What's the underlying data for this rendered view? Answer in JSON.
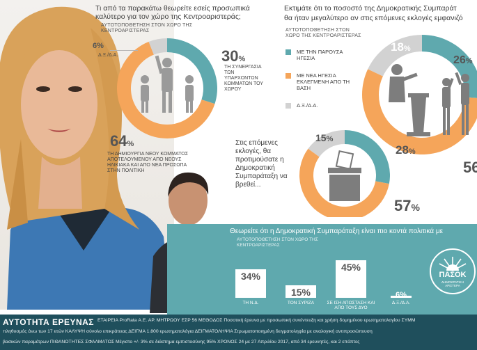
{
  "colors": {
    "teal": "#5fa9ae",
    "orange": "#f5a55a",
    "gray": "#d2d2d2",
    "dark_teal": "#1f4f5c"
  },
  "q1": {
    "question": "Τι από τα παρακάτω θεωρείτε εσείς προσωπικά καλύτερο για τον χώρο της Κεντροαριστεράς;",
    "subtitle": "ΑΥΤΟΤΟΠΟΘΕΤΗΣΗ ΣΤΟΝ ΧΩΡΟ ΤΗΣ ΚΕΝΤΡΟΑΡΙΣΤΕΡΑΣ",
    "slice_orange": {
      "pct": "64",
      "pct_sign": "%",
      "caption": "ΤΗ ΔΗΜΙΟΥΡΓΙΑ ΝΕΟΥ ΚΟΜΜΑΤΟΣ ΑΠΟΤΕΛΟΥΜΕΝΟΥ ΑΠΟ ΝΕΟΥΣ ΗΛΙΚΙΑΚΑ ΚΑΙ ΑΠΟ ΝΕΑ ΠΡΟΣΩΠΑ ΣΤΗΝ ΠΟΛΙΤΙΚΗ"
    },
    "slice_teal": {
      "pct": "30",
      "pct_sign": "%",
      "caption": "ΤΗ ΣΥΝΕΡΓΑΣΙΑ ΤΩΝ ΥΠΑΡΧΟΝΤΩΝ ΚΟΜΜΑΤΩΝ ΤΟΥ ΧΩΡΟΥ"
    },
    "slice_gray": {
      "pct": "6",
      "pct_sign": "%",
      "caption": "Δ.Ξ./Δ.Α."
    }
  },
  "q2": {
    "question_line1": "Εκτιμάτε ότι το ποσοστό της Δημοκρατικής Συμπαράτ",
    "question_line2": "θα ήταν μεγαλύτερο αν στις επόμενες εκλογές εμφανιζό",
    "subtitle": "ΑΥΤΟΤΟΠΟΘΕΤΗΣΗ ΣΤΟΝ ΧΩΡΟ ΤΗΣ ΚΕΝΤΡΟΑΡΙΣΤΕΡΑΣ",
    "legend": [
      {
        "label": "ΜΕ ΤΗΝ ΠΑΡΟΥΣΑ ΗΓΕΣΙΑ"
      },
      {
        "label": "ΜΕ ΝΕΑ ΗΓΕΣΙΑ ΕΚΛΕΓΜΕΝΗ ΑΠΟ ΤΗ ΒΑΣΗ"
      },
      {
        "label": "Δ.Ξ./Δ.Α."
      }
    ],
    "pct_teal": "26",
    "pct_teal_sign": "%",
    "pct_gray": "18",
    "pct_gray_sign": "%",
    "pct_orange": "56"
  },
  "q3": {
    "question": "Στις επόμενες εκλογές, θα προτιμούσατε η Δημοκρατική Συμπαράταξη να βρεθεί...",
    "pct_teal": "28",
    "pct_teal_sign": "%",
    "pct_gray": "15",
    "pct_gray_sign": "%",
    "pct_orange": "57",
    "pct_orange_sign": "%"
  },
  "q4": {
    "question": "Θεωρείτε ότι η Δημοκρατική Συμπαράταξη είναι πιο κοντά πολιτικά με",
    "subtitle": "ΑΥΤΟΤΟΠΟΘΕΤΗΣΗ ΣΤΟΝ ΧΩΡΟ ΤΗΣ ΚΕΝΤΡΟΑΡΙΣΤΕΡΑΣ",
    "logo_text": "ΠΑΣΟΚ",
    "logo_sub": "ΔΗΜΟΚΡΑΤΙΚΗ ΑΡΙΣΤΕΡΑ"
  },
  "chart_data": [
    {
      "type": "pie",
      "title": "Τι από τα παρακάτω θεωρείτε εσείς προσωπικά καλύτερο για τον χώρο της Κεντροαριστεράς;",
      "categories": [
        "ΤΗ ΔΗΜΙΟΥΡΓΙΑ ΝΕΟΥ ΚΟΜΜΑΤΟΣ",
        "ΤΗ ΣΥΝΕΡΓΑΣΙΑ ΤΩΝ ΥΠΑΡΧΟΝΤΩΝ ΚΟΜΜΑΤΩΝ ΤΟΥ ΧΩΡΟΥ",
        "Δ.Ξ./Δ.Α."
      ],
      "values": [
        64,
        30,
        6
      ]
    },
    {
      "type": "pie",
      "title": "Εκτιμάτε ότι το ποσοστό της Δημοκρατικής Συμπαράταξης θα ήταν μεγαλύτερο αν στις επόμενες εκλογές εμφανιζό",
      "categories": [
        "ΜΕ ΤΗΝ ΠΑΡΟΥΣΑ ΗΓΕΣΙΑ",
        "ΜΕ ΝΕΑ ΗΓΕΣΙΑ ΕΚΛΕΓΜΕΝΗ ΑΠΟ ΤΗ ΒΑΣΗ",
        "Δ.Ξ./Δ.Α."
      ],
      "values": [
        26,
        56,
        18
      ]
    },
    {
      "type": "pie",
      "title": "Στις επόμενες εκλογές, θα προτιμούσατε η Δημοκρατική Συμπαράταξη να βρεθεί...",
      "values": [
        28,
        57,
        15
      ]
    },
    {
      "type": "bar",
      "title": "Θεωρείτε ότι η Δημοκρατική Συμπαράταξη είναι πιο κοντά πολιτικά με",
      "categories": [
        "ΤΗ Ν.Δ.",
        "ΤΟΝ ΣΥΡΙΖΑ",
        "ΣΕ ΙΣΗ ΑΠΟΣΤΑΣΗ ΚΑΙ ΑΠΟ ΤΟΥΣ ΔΥΟ",
        "Δ.Ξ./Δ.Α."
      ],
      "values": [
        34,
        15,
        45,
        6
      ],
      "labels": [
        "34%",
        "15%",
        "45%",
        "6%"
      ],
      "ylim": [
        0,
        50
      ]
    }
  ],
  "footer": {
    "title": "ΑΥΤΟΤΗΤΑ ΕΡΕΥΝΑΣ",
    "line1": "ΕΤΑΙΡΕΙΑ ProRata Α.Ε. ΑΡ. ΜΗΤΡΩΟΥ ΕΣΡ 56 ΜΕΘΟΔΟΣ Ποσοτική έρευνα με προσωπική συνέντευξη και χρήση δομημένου ερωτηματολογίου ΣΥΜΜ",
    "line2": "πληθυσμός άνω των 17 ετών ΚΑΛΥΨΗ σύνολο επικράτειας ΔΕΙΓΜΑ 1.800 ερωτηματολόγια ΔΕΙΓΜΑΤΟΛΗΨΙΑ Στρωματοποιημένη δειγματοληψία με αναλογική αντιπροσώπευση",
    "line3": "βασικών παραμέτρων ΠΙΘΑΝΟΤΗΤΕΣ ΣΦΑΛΜΑΤΟΣ Μέγιστο +/- 3% σε διάστημα εμπιστοσύνης 95% ΧΡΟΝΟΣ 24 με 27 Απριλίου 2017, από 34 ερευνητές, και 2 επόπτες"
  }
}
